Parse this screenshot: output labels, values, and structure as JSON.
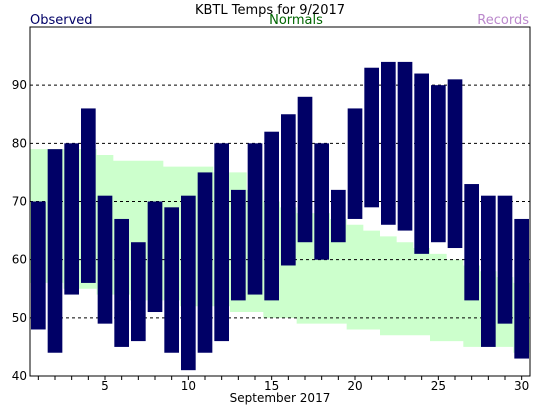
{
  "chart_data": {
    "type": "bar",
    "title": "KBTL Temps for 9/2017",
    "xlabel": "September 2017",
    "ylabel": "",
    "legend": [
      {
        "label": "Observed",
        "color": "#000066"
      },
      {
        "label": "Normals",
        "color": "#006600"
      },
      {
        "label": "Records",
        "color": "#bb88cc"
      }
    ],
    "colors": {
      "observed": "#000066",
      "normals_band": "#ccffcc",
      "grid": "#000000",
      "frame": "#000000"
    },
    "ylim": [
      40,
      100
    ],
    "yticks": [
      40,
      50,
      60,
      70,
      80,
      90
    ],
    "xticks": [
      5,
      10,
      15,
      20,
      25,
      30
    ],
    "grid": "horizontal dotted at 50, 60, 70, 80, 90",
    "days": [
      1,
      2,
      3,
      4,
      5,
      6,
      7,
      8,
      9,
      10,
      11,
      12,
      13,
      14,
      15,
      16,
      17,
      18,
      19,
      20,
      21,
      22,
      23,
      24,
      25,
      26,
      27,
      28,
      29,
      30
    ],
    "series": [
      {
        "name": "Observed",
        "high": [
          70,
          79,
          80,
          86,
          71,
          67,
          63,
          70,
          69,
          71,
          75,
          80,
          72,
          80,
          82,
          85,
          88,
          80,
          72,
          86,
          93,
          94,
          94,
          92,
          90,
          91,
          73,
          71,
          71,
          67
        ],
        "low": [
          48,
          44,
          54,
          56,
          49,
          45,
          46,
          51,
          44,
          41,
          44,
          46,
          53,
          54,
          53,
          59,
          63,
          60,
          63,
          67,
          69,
          66,
          65,
          61,
          63,
          62,
          53,
          45,
          49,
          43
        ]
      },
      {
        "name": "Normals",
        "high": [
          79,
          79,
          79,
          79,
          78,
          77,
          77,
          77,
          76,
          76,
          76,
          75,
          75,
          72,
          70,
          69,
          68,
          68,
          67,
          66,
          65,
          64,
          63,
          62,
          61,
          60,
          59,
          58,
          57,
          56
        ],
        "low": [
          56,
          56,
          55,
          55,
          54,
          54,
          53,
          53,
          53,
          52,
          52,
          52,
          51,
          51,
          50,
          50,
          49,
          49,
          49,
          48,
          48,
          47,
          47,
          47,
          46,
          46,
          45,
          45,
          45,
          44
        ]
      }
    ]
  }
}
